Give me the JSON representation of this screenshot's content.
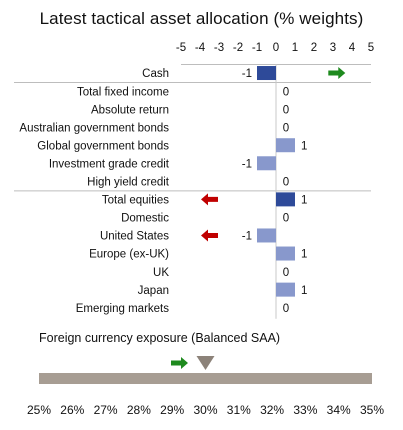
{
  "chart_data": [
    {
      "type": "bar",
      "orientation": "horizontal",
      "title": "Latest tactical asset allocation (% weights)",
      "xlim": [
        -5,
        5
      ],
      "x_ticks": [
        "-5",
        "-4",
        "-3",
        "-2",
        "-1",
        "0",
        "1",
        "2",
        "3",
        "4",
        "5"
      ],
      "categories": [
        "Cash",
        "Total fixed income",
        "Absolute return",
        "Australian government bonds",
        "Global government bonds",
        "Investment grade credit",
        "High yield credit",
        "Total equities",
        "Domestic",
        "United States",
        "Europe (ex-UK)",
        "UK",
        "Japan",
        "Emerging markets"
      ],
      "values": [
        -1,
        0,
        0,
        0,
        1,
        -1,
        0,
        1,
        0,
        -1,
        1,
        0,
        1,
        0
      ],
      "value_labels": [
        "-1",
        "0",
        "0",
        "0",
        "1",
        "-1",
        "0",
        "1",
        "0",
        "-1",
        "1",
        "0",
        "1",
        "0"
      ],
      "bar_colors": [
        "#2e4a99",
        "#8898cc",
        "#8898cc",
        "#8898cc",
        "#8898cc",
        "#8898cc",
        "#8898cc",
        "#2e4a99",
        "#8898cc",
        "#8898cc",
        "#8898cc",
        "#8898cc",
        "#8898cc",
        "#8898cc"
      ],
      "arrows": [
        {
          "row": 0,
          "direction": "right",
          "color": "#1e8a1e"
        },
        {
          "row": 7,
          "direction": "left",
          "color": "#c00000"
        },
        {
          "row": 9,
          "direction": "left",
          "color": "#c00000"
        }
      ],
      "separators_after_rows": [
        0,
        6
      ],
      "grid": false,
      "legend": "none"
    },
    {
      "type": "gauge",
      "title": "Foreign currency exposure (Balanced SAA)",
      "xlim": [
        25,
        35
      ],
      "x_ticks": [
        "25%",
        "26%",
        "27%",
        "28%",
        "29%",
        "30%",
        "31%",
        "32%",
        "33%",
        "34%",
        "35%"
      ],
      "marker_value": 30,
      "marker_color": "#8c8279",
      "bar_color": "#a79d93",
      "arrow": {
        "direction": "right",
        "color": "#1e8a1e"
      }
    }
  ]
}
